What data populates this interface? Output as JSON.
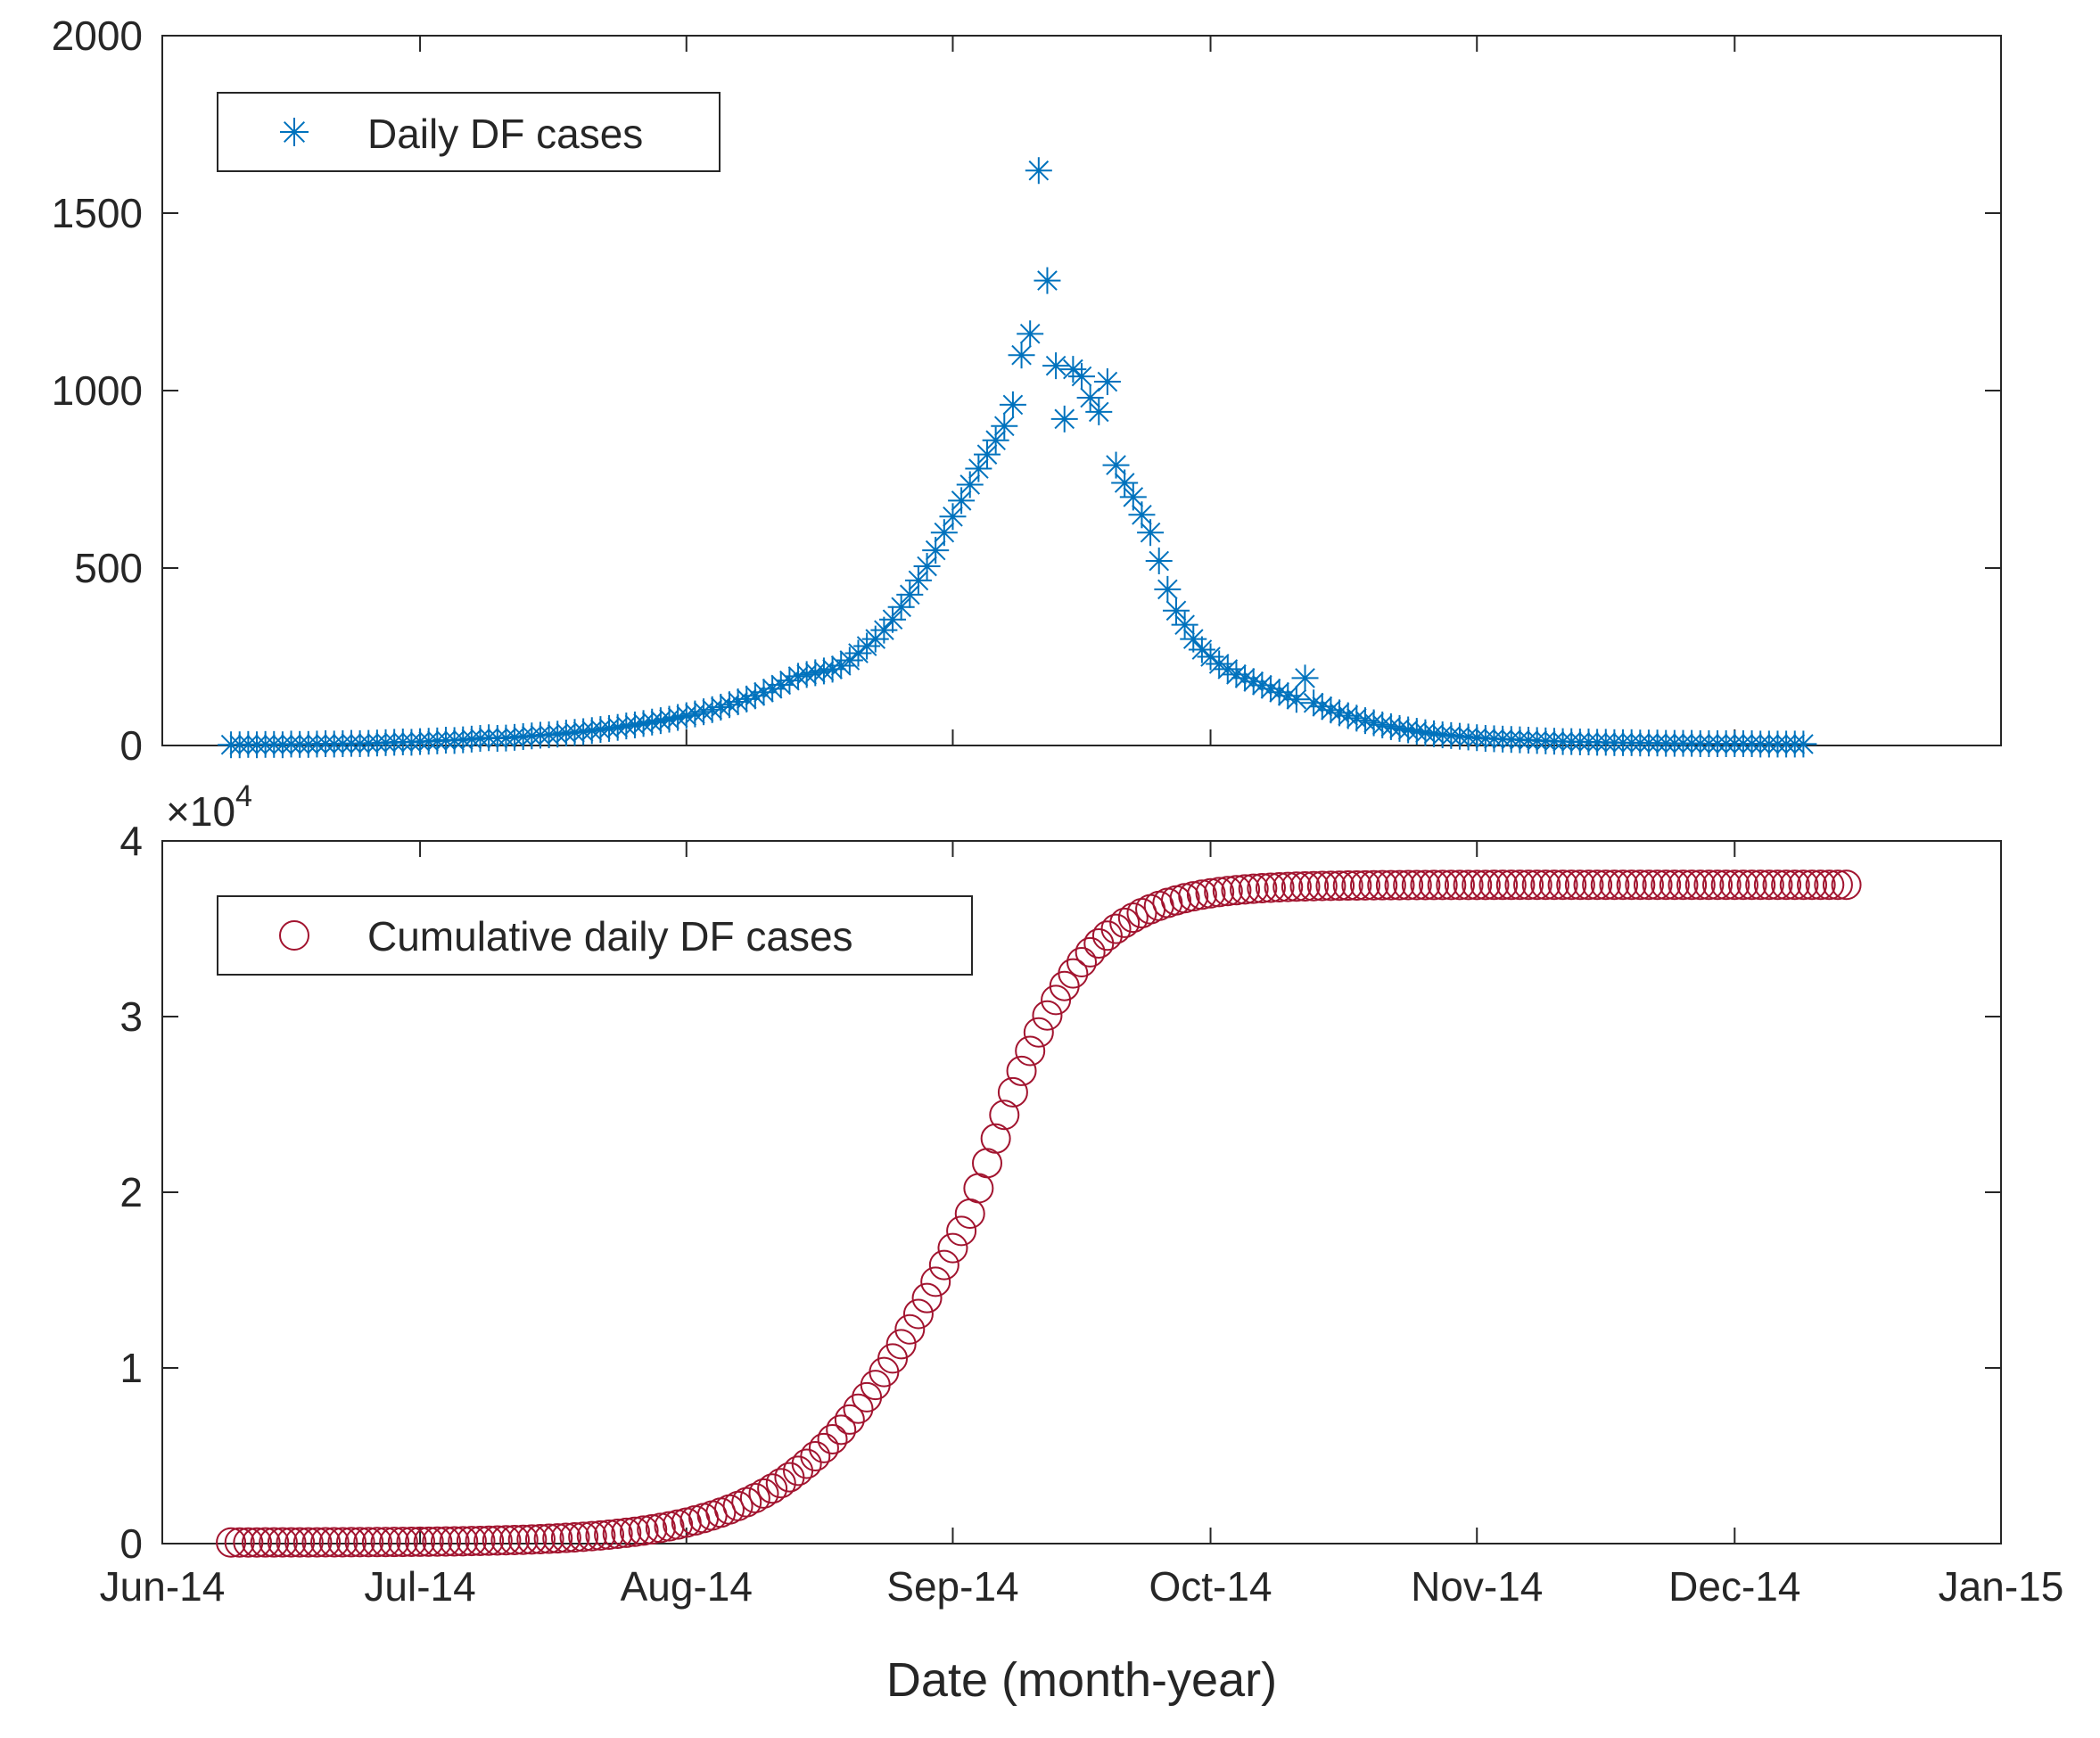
{
  "chart_data": [
    {
      "type": "scatter",
      "title": "",
      "xlabel": "",
      "ylabel": "",
      "ylim": [
        0,
        2000
      ],
      "yticks": [
        "0",
        "500",
        "1000",
        "1500",
        "2000"
      ],
      "xtick_labels": [],
      "legend": {
        "label": "Daily DF cases",
        "position": "top-left"
      },
      "series": [
        {
          "name": "Daily DF cases",
          "marker": "asterisk",
          "color": "#0072BD",
          "x_day_start": 8,
          "x_day_step": 1,
          "y": [
            2,
            2,
            3,
            2,
            3,
            3,
            2,
            4,
            3,
            3,
            4,
            5,
            4,
            5,
            6,
            5,
            6,
            7,
            8,
            9,
            10,
            9,
            11,
            12,
            13,
            15,
            14,
            16,
            18,
            20,
            22,
            20,
            21,
            23,
            25,
            27,
            29,
            30,
            32,
            35,
            37,
            39,
            42,
            45,
            48,
            51,
            55,
            58,
            62,
            66,
            70,
            74,
            79,
            84,
            89,
            95,
            101,
            108,
            115,
            123,
            131,
            140,
            150,
            160,
            171,
            183,
            195,
            200,
            205,
            210,
            215,
            225,
            240,
            260,
            280,
            300,
            325,
            355,
            390,
            425,
            465,
            505,
            550,
            600,
            645,
            690,
            735,
            780,
            820,
            860,
            900,
            960,
            1100,
            1160,
            1620,
            1310,
            1070,
            920,
            1060,
            1040,
            980,
            940,
            1025,
            790,
            740,
            700,
            650,
            600,
            520,
            440,
            380,
            340,
            300,
            270,
            250,
            230,
            215,
            200,
            190,
            180,
            170,
            160,
            150,
            140,
            130,
            190,
            120,
            110,
            100,
            92,
            84,
            77,
            70,
            64,
            58,
            53,
            48,
            44,
            40,
            36,
            33,
            30,
            28,
            26,
            24,
            22,
            20,
            19,
            18,
            17,
            16,
            15,
            14,
            13,
            12,
            11,
            11,
            10,
            10,
            9,
            9,
            8,
            8,
            8,
            7,
            7,
            7,
            6,
            6,
            6,
            6,
            5,
            5,
            5,
            5,
            5,
            5,
            5,
            4,
            4,
            4,
            4,
            4,
            4
          ]
        }
      ]
    },
    {
      "type": "scatter",
      "title": "",
      "xlabel": "Date (month-year)",
      "ylabel": "",
      "ylim": [
        0,
        40000
      ],
      "y_exponent_label": "×10",
      "y_exponent_power": "4",
      "yticks": [
        "0",
        "1",
        "2",
        "3",
        "4"
      ],
      "xticks": [
        "Jun-14",
        "Jul-14",
        "Aug-14",
        "Sep-14",
        "Oct-14",
        "Nov-14",
        "Dec-14",
        "Jan-15"
      ],
      "legend": {
        "label": "Cumulative daily DF cases",
        "position": "top-left"
      },
      "series": [
        {
          "name": "Cumulative daily DF cases",
          "marker": "circle",
          "color": "#A2142F",
          "x_day_start": 8,
          "x_day_step": 1,
          "y_model": {
            "form": "logistic",
            "upper": 37500,
            "midpoint_day": 94,
            "rate_before": 0.105,
            "rate_after": 0.155,
            "offset": 60,
            "count": 189
          }
        }
      ]
    }
  ]
}
